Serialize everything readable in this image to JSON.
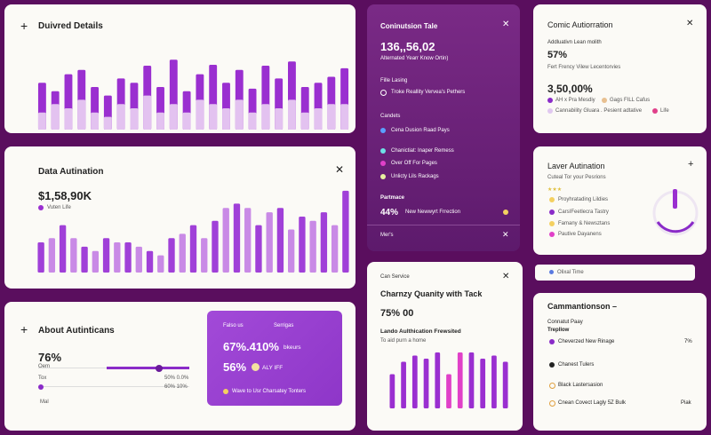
{
  "details": {
    "title": "Duivred Details",
    "chart": {
      "type": "bar",
      "ylim": [
        0,
        100
      ],
      "series": [
        {
          "color": "#9a2fd0",
          "values": [
            55,
            45,
            65,
            70,
            50,
            40,
            60,
            55,
            75,
            50,
            82,
            45,
            65,
            76,
            55,
            70,
            48,
            75,
            60,
            80,
            50,
            55,
            62,
            72
          ]
        },
        {
          "color": "#e3c2f0",
          "values": [
            20,
            30,
            25,
            35,
            20,
            15,
            30,
            25,
            40,
            20,
            30,
            20,
            35,
            30,
            25,
            35,
            20,
            30,
            25,
            35,
            20,
            25,
            30,
            30
          ]
        }
      ]
    }
  },
  "automation": {
    "title": "Data Autination",
    "value": "$1,58,90K",
    "legend": "Vuten Life",
    "chart": {
      "type": "bar",
      "ylim": [
        0,
        100
      ],
      "colors": [
        "#a040d8",
        "#c98ae6"
      ],
      "values": [
        35,
        40,
        55,
        40,
        30,
        25,
        40,
        35,
        35,
        30,
        25,
        20,
        40,
        45,
        55,
        40,
        60,
        75,
        80,
        75,
        55,
        70,
        75,
        50,
        65,
        60,
        70,
        55,
        95
      ]
    }
  },
  "about": {
    "title": "About Autinticans",
    "value": "76%",
    "row1_label": "Oem",
    "row2_left": "Tox",
    "row2_right": "50% 0.0%",
    "row3_right": "60% 10%",
    "row4_label": "Mal",
    "promo": {
      "tab1": "Falso us",
      "tab2": "Serrigas",
      "stat1": "67%.410%",
      "stat1_label": "bkeurs",
      "stat2": "56%",
      "stat2_label": "ALY IFF",
      "footer": "Wave to Usr Charsatey Tonters"
    }
  },
  "connection": {
    "title": "Coninutsion Tale",
    "value": "136,,56,02",
    "subtitle": "Alternated Yearr Know Ortin)",
    "section1": "Fille Lasing",
    "item1": "Troke Reallity Vervea's Pethers",
    "section2": "Candets",
    "items": [
      "Cena Dusion Raad Pays",
      "Chanictiat: Inaper Remess",
      "Over Off For Pages",
      "Unlicty Lils Rackags"
    ],
    "section3": "Partmace",
    "stat": "44%",
    "stat_label": "New Newwyrt Frrection",
    "footer": "Mer's"
  },
  "service": {
    "tag": "Can Service",
    "title": "Charnzy Quanity with Tack",
    "value": "75% 00",
    "subtitle": "Lando Aulthication Frewsited",
    "caption": "To aid purn a home",
    "chart": {
      "type": "bar",
      "ylim": [
        0,
        100
      ],
      "colors": [
        "#9a2fd0",
        "#9a2fd0",
        "#9a2fd0",
        "#9a2fd0",
        "#9a2fd0",
        "#e040c8",
        "#e040c8",
        "#9a2fd0",
        "#9a2fd0",
        "#9a2fd0",
        "#9a2fd0"
      ],
      "values": [
        55,
        75,
        85,
        80,
        90,
        55,
        90,
        90,
        80,
        85,
        75
      ]
    }
  },
  "comic": {
    "title": "Comic Autiorration",
    "label": "Addluativn Lean molith",
    "value": "57%",
    "sub": "Fert Frency Vilew Lecentorvies",
    "value2": "3,50,00%",
    "legend": [
      "AH x Pra Mesdiy",
      "Gags FILL Cafus",
      "Cannability Gluara . Pesient adtative",
      "Life"
    ]
  },
  "laver": {
    "title": "Laver Autination",
    "sub": "Cuteal Tor your Pesrions",
    "items": [
      "Proyhratading Lildies",
      "CarsIFeetlecra Tastry",
      "Famany & Newsztans",
      "Pautive Dayanens"
    ]
  },
  "pill": "Olixal Time",
  "comm": {
    "title": "Cammantionson –",
    "label": "Connatut Paay",
    "sub": "Trepllow",
    "rows": [
      {
        "label": "Cheverzed New Rinage",
        "value": "7%"
      },
      {
        "label": "Chanest Tulers"
      },
      {
        "label": "Black Lastersasion"
      },
      {
        "label": "Cnean Covect Lagly 5Z Bulk",
        "value": "Piak"
      }
    ]
  }
}
